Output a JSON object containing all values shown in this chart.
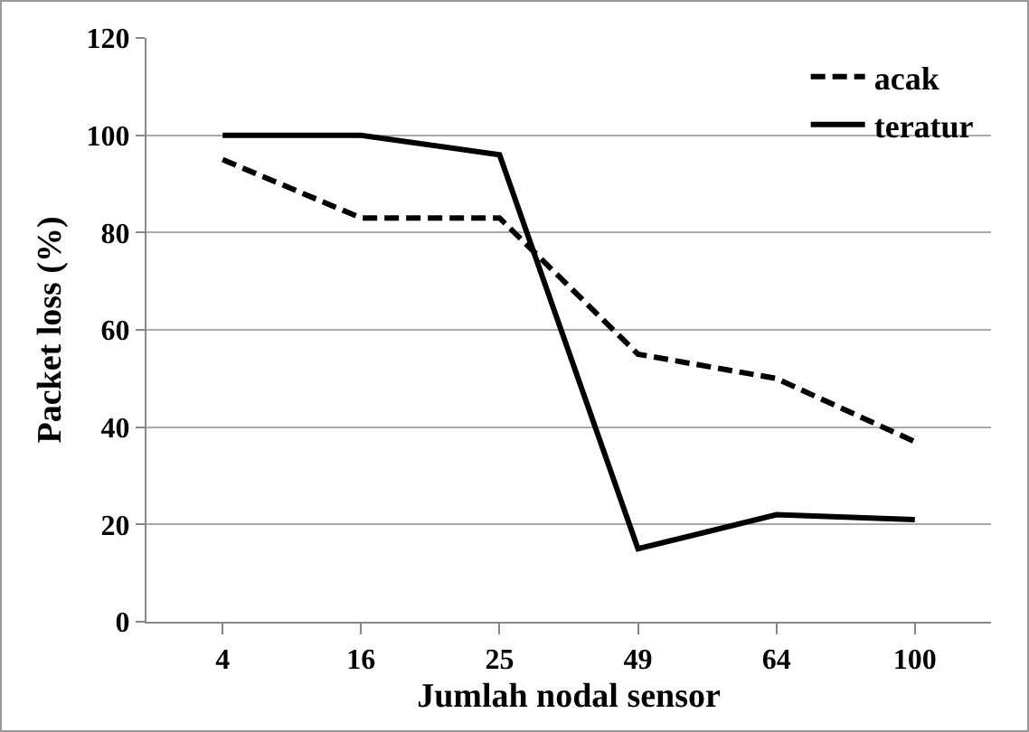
{
  "chart_data": {
    "type": "line",
    "xlabel": "Jumlah nodal sensor",
    "ylabel": "Packet loss (%)",
    "categories": [
      "4",
      "16",
      "25",
      "49",
      "64",
      "100"
    ],
    "series": [
      {
        "name": "acak",
        "color": "#000000",
        "line_style": "dashed",
        "values": [
          95,
          83,
          83,
          55,
          50,
          37
        ]
      },
      {
        "name": "teratur",
        "color": "#000000",
        "line_style": "solid",
        "values": [
          100,
          100,
          96,
          15,
          22,
          21
        ]
      }
    ],
    "ylim": [
      0,
      120
    ],
    "yticks": [
      0,
      20,
      40,
      60,
      80,
      100,
      120
    ],
    "grid": "y",
    "legend": "top right",
    "marker": "none"
  }
}
